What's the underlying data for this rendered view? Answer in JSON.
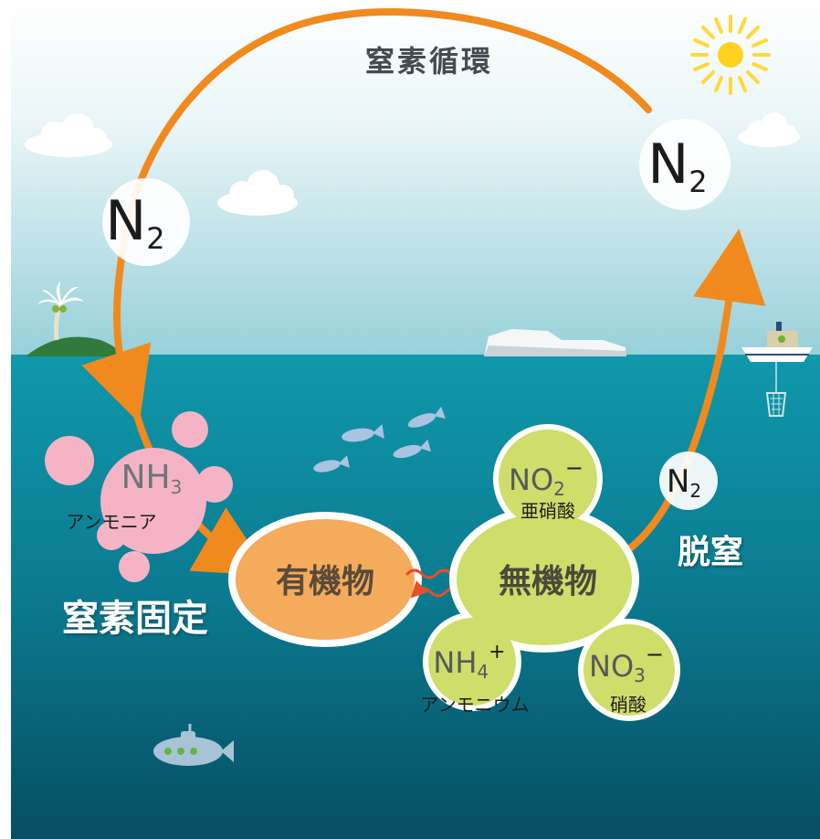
{
  "title": "窒素循環",
  "nodes": {
    "n2_left": {
      "main": "N",
      "sub": "2"
    },
    "n2_right": {
      "main": "N",
      "sub": "2"
    },
    "n2_small": {
      "main": "N",
      "sub": "2"
    },
    "nh3": {
      "main": "NH",
      "sub": "3",
      "caption": "アンモニア"
    },
    "organic": {
      "label": "有機物"
    },
    "inorganic": {
      "label": "無機物"
    },
    "no2": {
      "main": "NO",
      "sub": "2",
      "sup": "−",
      "caption": "亜硝酸"
    },
    "nh4": {
      "main": "NH",
      "sub": "4",
      "sup": "+",
      "caption": "アンモニウム"
    },
    "no3": {
      "main": "NO",
      "sub": "3",
      "sup": "−",
      "caption": "硝酸"
    }
  },
  "labels": {
    "fixation": "窒素固定",
    "denitrification": "脱窒"
  },
  "colors": {
    "cycle_arrow": "#f08a1e",
    "organic_fill": "#f5ab5c",
    "inorganic_fill": "#cfdd6a",
    "ammonia_fill": "#f5b3c6",
    "sea_top": "#0f95a8",
    "sea_bottom": "#075469",
    "sky_top": "#ffffff",
    "sky_bottom": "#9fd4dd"
  },
  "icons": [
    "sun-icon",
    "cloud-icon",
    "palm-island-icon",
    "iceberg-icon",
    "ship-icon",
    "fish-icon",
    "submarine-icon",
    "wavy-arrow-icon"
  ]
}
